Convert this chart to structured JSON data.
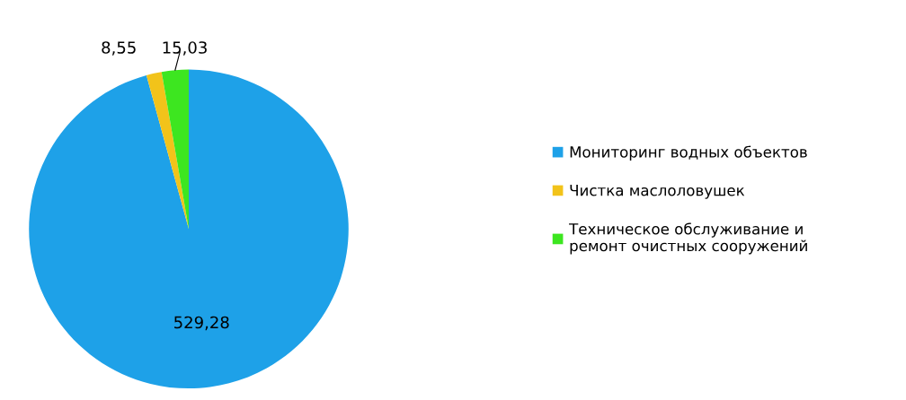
{
  "chart_data": {
    "type": "pie",
    "categories": [
      "Мониторинг водных объектов",
      "Чистка маслоловушек",
      "Техническое обслуживание и\nремонт очистных сооружений"
    ],
    "values": [
      529.28,
      8.55,
      15.03
    ],
    "value_labels": [
      "529,28",
      "8,55",
      "15,03"
    ],
    "colors": [
      "#1ea1e8",
      "#f2c31a",
      "#3de620"
    ],
    "legend": "right"
  }
}
